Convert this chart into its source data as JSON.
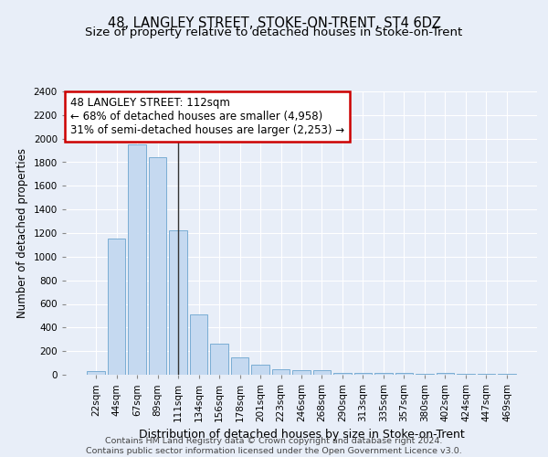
{
  "title": "48, LANGLEY STREET, STOKE-ON-TRENT, ST4 6DZ",
  "subtitle": "Size of property relative to detached houses in Stoke-on-Trent",
  "xlabel": "Distribution of detached houses by size in Stoke-on-Trent",
  "ylabel": "Number of detached properties",
  "categories": [
    "22sqm",
    "44sqm",
    "67sqm",
    "89sqm",
    "111sqm",
    "134sqm",
    "156sqm",
    "178sqm",
    "201sqm",
    "223sqm",
    "246sqm",
    "268sqm",
    "290sqm",
    "313sqm",
    "335sqm",
    "357sqm",
    "380sqm",
    "402sqm",
    "424sqm",
    "447sqm",
    "469sqm"
  ],
  "values": [
    30,
    1150,
    1950,
    1840,
    1220,
    510,
    265,
    150,
    85,
    45,
    40,
    35,
    18,
    18,
    12,
    12,
    8,
    18,
    5,
    5,
    5
  ],
  "bar_color": "#c5d9f0",
  "bar_edge_color": "#7aadd4",
  "highlight_bar_index": 4,
  "highlight_line_color": "#333333",
  "annotation_text": "48 LANGLEY STREET: 112sqm\n← 68% of detached houses are smaller (4,958)\n31% of semi-detached houses are larger (2,253) →",
  "annotation_box_facecolor": "#ffffff",
  "annotation_box_edgecolor": "#cc0000",
  "ylim": [
    0,
    2400
  ],
  "yticks": [
    0,
    200,
    400,
    600,
    800,
    1000,
    1200,
    1400,
    1600,
    1800,
    2000,
    2200,
    2400
  ],
  "background_color": "#e8eef8",
  "grid_color": "#ffffff",
  "footer_text": "Contains HM Land Registry data © Crown copyright and database right 2024.\nContains public sector information licensed under the Open Government Licence v3.0.",
  "title_fontsize": 10.5,
  "subtitle_fontsize": 9.5,
  "xlabel_fontsize": 9,
  "ylabel_fontsize": 8.5,
  "tick_fontsize": 7.5,
  "annotation_fontsize": 8.5,
  "footer_fontsize": 6.8
}
